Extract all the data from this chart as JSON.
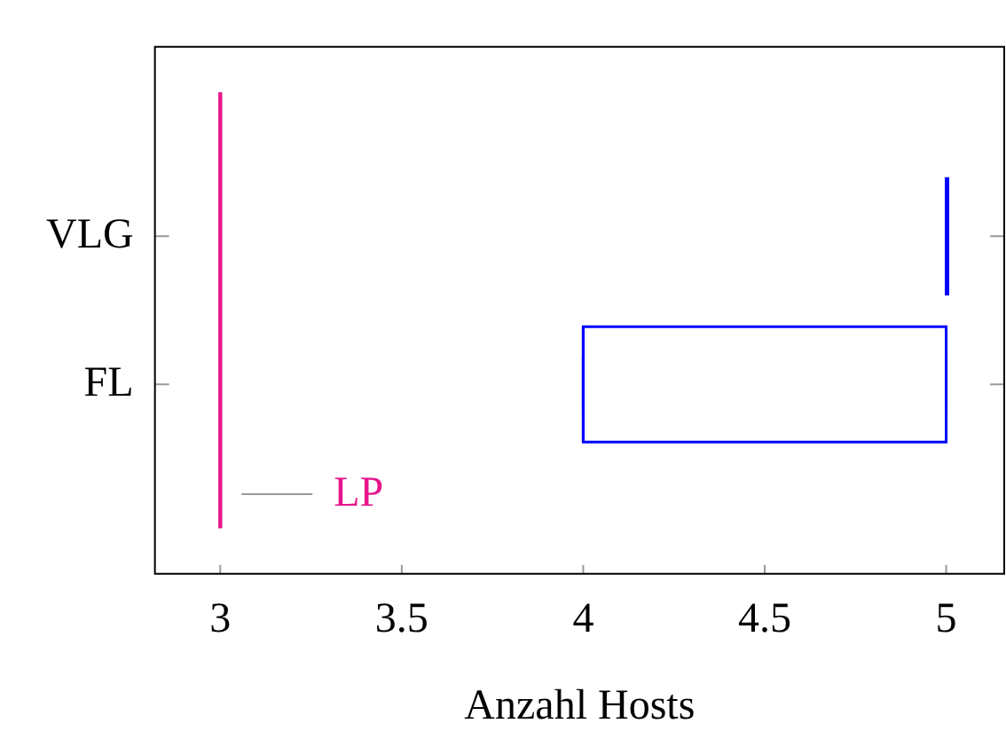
{
  "chart_data": {
    "type": "box",
    "orientation": "horizontal",
    "categories": [
      "VLG",
      "FL"
    ],
    "boxes": [
      {
        "low": 5,
        "q1": 5,
        "median": 5,
        "q3": 5,
        "high": 5
      },
      {
        "low": 4,
        "q1": 4,
        "median": 4,
        "q3": 5,
        "high": 5
      }
    ],
    "color": "#0000ff",
    "xlabel": "Anzahl Hosts",
    "xlim": [
      2.82,
      5.16
    ],
    "xticks": [
      3,
      3.5,
      4,
      4.5,
      5
    ],
    "grid": false,
    "ref_lines": [
      {
        "axis": "x",
        "value": 3,
        "label": "LP",
        "color": "#e6168c"
      }
    ]
  }
}
